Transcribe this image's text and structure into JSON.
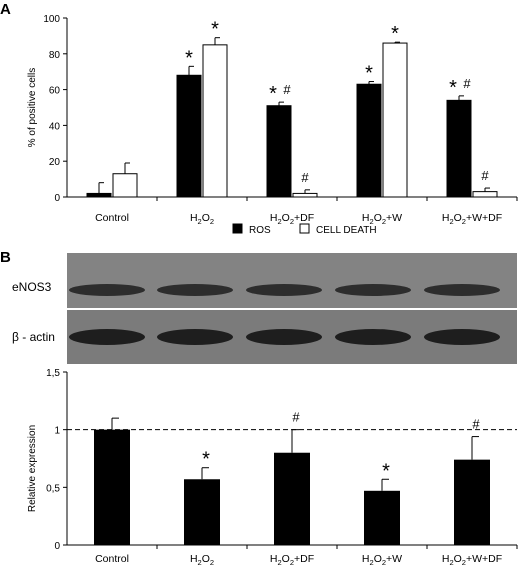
{
  "panel_a_label": "A",
  "panel_b_label": "B",
  "chart_data": [
    {
      "type": "bar",
      "panel": "A",
      "categories": [
        "Control",
        "H2O2",
        "H2O2+DF",
        "H2O2+W",
        "H2O2+W+DF"
      ],
      "category_labels": [
        {
          "base": "Control",
          "sub": "",
          "rest": ""
        },
        {
          "base": "H",
          "sub": "2",
          "rest": "O",
          "sub2": "2",
          "tail": ""
        },
        {
          "base": "H",
          "sub": "2",
          "rest": "O",
          "sub2": "2",
          "tail": "+DF"
        },
        {
          "base": "H",
          "sub": "2",
          "rest": "O",
          "sub2": "2",
          "tail": "+W"
        },
        {
          "base": "H",
          "sub": "2",
          "rest": "O",
          "sub2": "2",
          "tail": "+W+DF"
        }
      ],
      "ylabel": "% of positive cells",
      "ylim": [
        0,
        100
      ],
      "yticks": [
        "0",
        "20",
        "40",
        "60",
        "80",
        "100"
      ],
      "series": [
        {
          "name": "ROS",
          "color": "#000000",
          "values": [
            2,
            68,
            51,
            63,
            54
          ],
          "errors": [
            6,
            5,
            2,
            1.5,
            2.5
          ],
          "marks": [
            "",
            "*",
            "*#",
            "*",
            "*#"
          ]
        },
        {
          "name": "CELL DEATH",
          "color": "#ffffff",
          "values": [
            13,
            85,
            2,
            86,
            3
          ],
          "errors": [
            6,
            4,
            2,
            0.5,
            2
          ],
          "marks": [
            "",
            "*",
            "#",
            "*",
            "#"
          ]
        }
      ]
    },
    {
      "type": "bar",
      "panel": "B",
      "categories": [
        "Control",
        "H2O2",
        "H2O2+DF",
        "H2O2+W",
        "H2O2+W+DF"
      ],
      "category_labels": [
        {
          "base": "Control",
          "sub": "",
          "rest": ""
        },
        {
          "base": "H",
          "sub": "2",
          "rest": "O",
          "sub2": "2",
          "tail": ""
        },
        {
          "base": "H",
          "sub": "2",
          "rest": "O",
          "sub2": "2",
          "tail": "+DF"
        },
        {
          "base": "H",
          "sub": "2",
          "rest": "O",
          "sub2": "2",
          "tail": "+W"
        },
        {
          "base": "H",
          "sub": "2",
          "rest": "O",
          "sub2": "2",
          "tail": "+W+DF"
        }
      ],
      "ylabel": "Relative expression",
      "ylim": [
        0,
        1.5
      ],
      "yticks": [
        "0",
        "0,5",
        "1",
        "1,5"
      ],
      "reference_line": 1,
      "series": [
        {
          "name": "eNOS3",
          "color": "#000000",
          "values": [
            1.0,
            0.57,
            0.8,
            0.47,
            0.74
          ],
          "errors": [
            0.1,
            0.1,
            0.2,
            0.1,
            0.2
          ],
          "marks": [
            "",
            "*",
            "#",
            "*",
            "#"
          ]
        }
      ]
    }
  ],
  "blot_labels": {
    "enos3": "eNOS3",
    "actin": "β - actin"
  }
}
